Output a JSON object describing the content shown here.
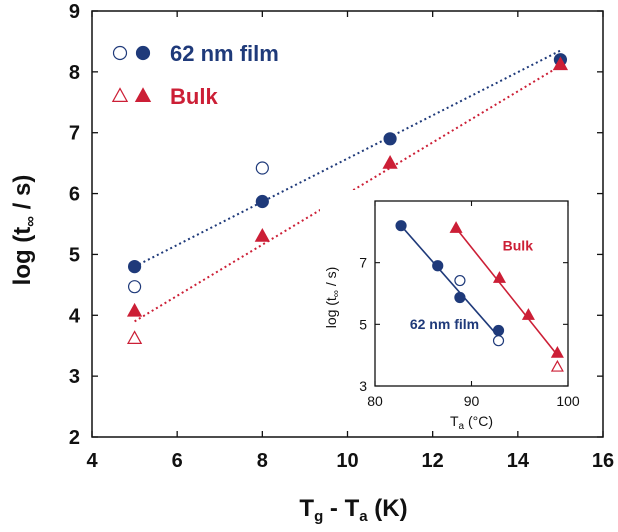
{
  "chart_data": [
    {
      "type": "scatter",
      "title": "",
      "xlabel_main": "T",
      "xlabel_sub1": "g",
      "xlabel_mid": " - T",
      "xlabel_sub2": "a",
      "xlabel_unit": " (K)",
      "ylabel_main": "log (t",
      "ylabel_sub": "∞",
      "ylabel_unit": " / s)",
      "xlim": [
        4,
        16
      ],
      "ylim": [
        2,
        9
      ],
      "xticks": [
        4,
        6,
        8,
        10,
        12,
        14,
        16
      ],
      "yticks": [
        2,
        3,
        4,
        5,
        6,
        7,
        8,
        9
      ],
      "grid": false,
      "legend_position": "top-left",
      "series": [
        {
          "name": "62 nm film",
          "marker": "circle-filled",
          "color": "#1f3a7a",
          "x": [
            5,
            8,
            11,
            15
          ],
          "y": [
            4.8,
            5.87,
            6.9,
            8.2
          ]
        },
        {
          "name": "62 nm film",
          "marker": "circle-open",
          "color": "#1f3a7a",
          "x": [
            5,
            8
          ],
          "y": [
            4.47,
            6.42
          ]
        },
        {
          "name": "Bulk",
          "marker": "triangle-filled",
          "color": "#cc1f36",
          "x": [
            5,
            8,
            11,
            15
          ],
          "y": [
            4.07,
            5.3,
            6.5,
            8.12
          ]
        },
        {
          "name": "Bulk",
          "marker": "triangle-open",
          "color": "#cc1f36",
          "x": [
            5
          ],
          "y": [
            3.62
          ]
        }
      ],
      "fits": [
        {
          "series": "62 nm film",
          "color": "#1f3a7a",
          "x": [
            5,
            15
          ],
          "y": [
            4.8,
            8.35
          ]
        },
        {
          "series": "Bulk",
          "color": "#cc1f36",
          "x": [
            5,
            15
          ],
          "y": [
            3.9,
            8.1
          ]
        }
      ],
      "legend": [
        {
          "label": "62 nm film",
          "color": "#1f3a7a",
          "markers": [
            "circle-open",
            "circle-filled"
          ]
        },
        {
          "label": "Bulk",
          "color": "#cc1f36",
          "markers": [
            "triangle-open",
            "triangle-filled"
          ]
        }
      ]
    },
    {
      "type": "scatter",
      "inset": true,
      "xlabel_main": "T",
      "xlabel_sub": "a",
      "xlabel_unit": " (°C)",
      "ylabel_main": "log (t",
      "ylabel_sub": "∞",
      "ylabel_unit": " / s)",
      "xlim": [
        80,
        100
      ],
      "ylim": [
        3,
        9
      ],
      "xticks": [
        80,
        90,
        100
      ],
      "yticks": [
        3,
        5,
        7
      ],
      "grid": false,
      "series": [
        {
          "name": "62 nm film",
          "marker": "circle-filled",
          "color": "#1f3a7a",
          "x": [
            82.7,
            86.5,
            88.8,
            92.8
          ],
          "y": [
            8.2,
            6.9,
            5.87,
            4.8
          ]
        },
        {
          "name": "62 nm film",
          "marker": "circle-open",
          "color": "#1f3a7a",
          "x": [
            88.8,
            92.8
          ],
          "y": [
            6.42,
            4.47
          ]
        },
        {
          "name": "Bulk",
          "marker": "triangle-filled",
          "color": "#cc1f36",
          "x": [
            88.4,
            92.9,
            95.9,
            98.9
          ],
          "y": [
            8.12,
            6.5,
            5.3,
            4.07
          ]
        },
        {
          "name": "Bulk",
          "marker": "triangle-open",
          "color": "#cc1f36",
          "x": [
            98.9
          ],
          "y": [
            3.62
          ]
        }
      ],
      "fits": [
        {
          "series": "62 nm film",
          "color": "#1f3a7a",
          "x": [
            82.7,
            92.8
          ],
          "y": [
            8.2,
            4.6
          ]
        },
        {
          "series": "Bulk",
          "color": "#cc1f36",
          "x": [
            88.4,
            98.9
          ],
          "y": [
            8.12,
            4.0
          ]
        }
      ],
      "annotations": [
        {
          "text": "Bulk",
          "color": "#cc1f36",
          "x": 94.8,
          "y": 7.4
        },
        {
          "text": "62 nm film",
          "color": "#1f3a7a",
          "x": 87.2,
          "y": 4.85
        }
      ]
    }
  ]
}
